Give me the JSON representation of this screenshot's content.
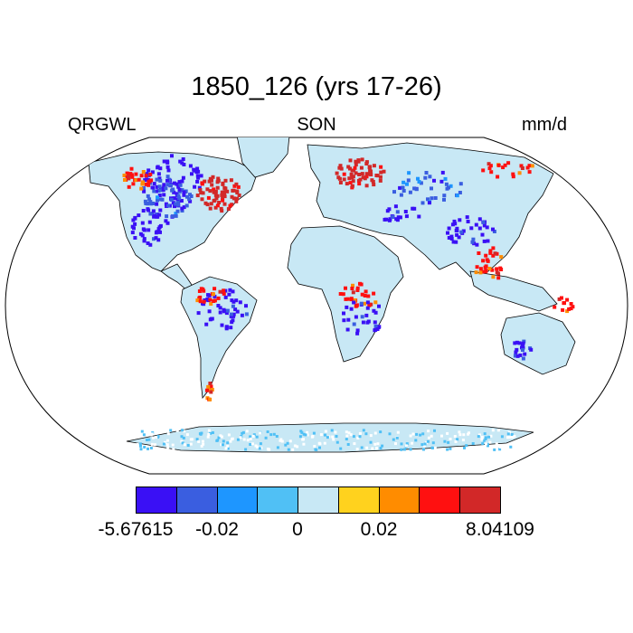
{
  "title": "1850_126 (yrs 17-26)",
  "left_label": "QRGWL",
  "center_label": "SON",
  "right_label": "mm/d",
  "colorbar": {
    "colors": [
      "#3a10f5",
      "#3a5ee0",
      "#1e96ff",
      "#50c0f5",
      "#c8e8f5",
      "#ffd21e",
      "#ff8c00",
      "#ff1010",
      "#d22828"
    ],
    "tick_labels": [
      "-5.67615",
      "-0.02",
      "0",
      "0.02",
      "8.04109"
    ]
  },
  "chart_data": {
    "type": "heatmap",
    "projection": "Robinson",
    "variable": "QRGWL",
    "season": "SON",
    "units": "mm/d",
    "value_range": [
      -5.67615,
      8.04109
    ],
    "levels": [
      -0.02,
      0,
      0.02
    ],
    "background_color": "#c8e8f5",
    "notable_regions": [
      {
        "color": "#3a10f5",
        "values": "negative",
        "areas": [
          "Northern Canada / Hudson Bay",
          "Central North America",
          "Amazon basin",
          "Southern Asia"
        ]
      },
      {
        "color": "#ff1010",
        "values": "positive",
        "areas": [
          "Quebec / Labrador",
          "Scandinavia",
          "Alaska coast",
          "Patagonia",
          "Southeast Asia",
          "Central Africa"
        ]
      }
    ]
  }
}
